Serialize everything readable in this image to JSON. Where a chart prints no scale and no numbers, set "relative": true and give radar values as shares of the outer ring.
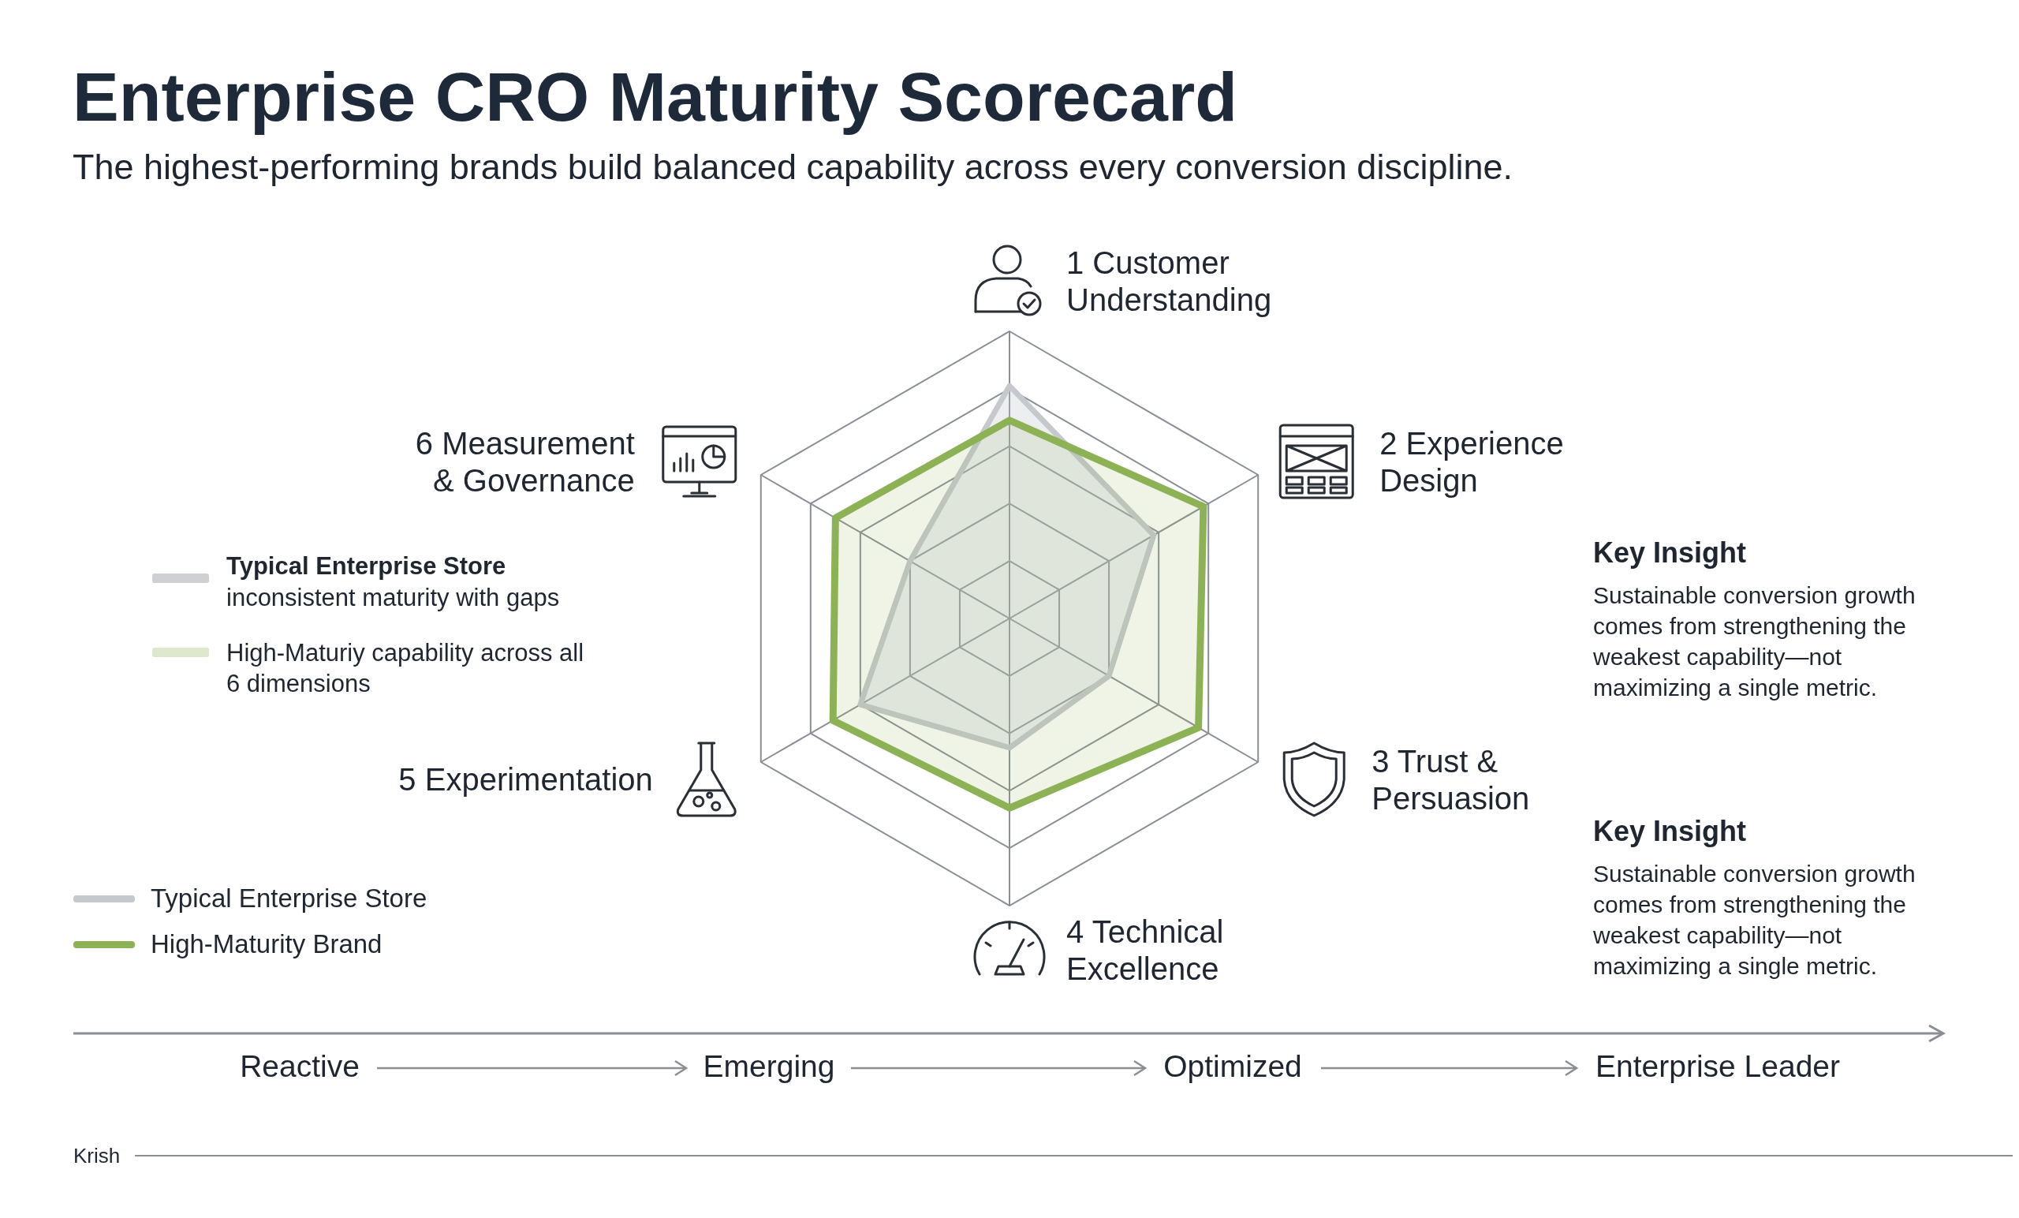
{
  "chart_data": {
    "type": "radar",
    "title": "Enterprise CRO Maturity Scorecard",
    "subtitle": "The highest-performing brands build balanced capability across every conversion discipline.",
    "categories": [
      "1 Customer Understanding",
      "2 Experience Design",
      "3 Trust & Persuasion",
      "4 Technical Excellence",
      "5 Experimentation",
      "6 Measurement & Governance"
    ],
    "relative": true,
    "grid": true,
    "legend": "bottom left",
    "marker": "none",
    "series": [
      {
        "name": "Typical Enterprise Store",
        "color": "#c5c8cd",
        "values": [
          0.81,
          0.58,
          0.4,
          0.45,
          0.6,
          0.4
        ]
      },
      {
        "name": "High-Maturity Brand",
        "color": "#8db255",
        "values": [
          0.69,
          0.78,
          0.76,
          0.66,
          0.71,
          0.7
        ]
      }
    ],
    "annotations": [
      "Typical Enterprise Store",
      "inconsistent maturity with gaps",
      "High-Maturiy capability across all 6 dimensions",
      "Key Insight",
      "Sustainable conversion growth comes from strengthening the weakest capability—not maximizing a single metric.",
      "Key Insight",
      "Sustainable conversion growth comes from strengthening the weakest capability—not maximizing a single metric.",
      "Reactive",
      "Emerging",
      "Optimized",
      "Enterprise Leader",
      "Krish"
    ]
  }
}
